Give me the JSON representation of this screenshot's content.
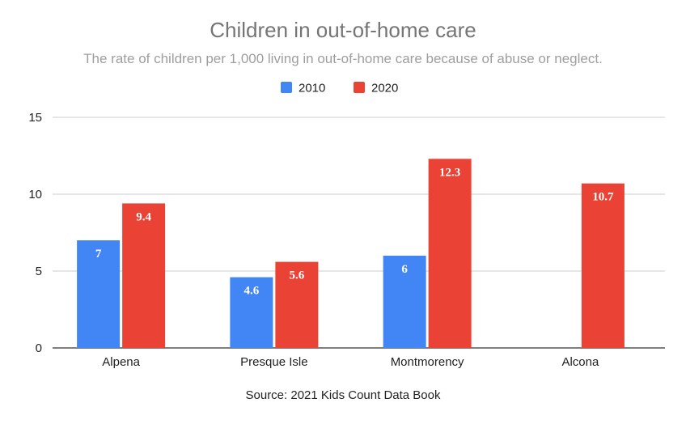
{
  "chart_data": {
    "type": "bar",
    "title": "Children in out-of-home care",
    "subtitle": "The rate of children per 1,000 living in out-of-home care because of abuse or neglect.",
    "categories": [
      "Alpena",
      "Presque Isle",
      "Montmorency",
      "Alcona"
    ],
    "series": [
      {
        "name": "2010",
        "color": "#4285f4",
        "values": [
          7,
          4.6,
          6,
          null
        ],
        "labels": [
          "7",
          "4.6",
          "6",
          null
        ]
      },
      {
        "name": "2020",
        "color": "#ea4335",
        "values": [
          9.4,
          5.6,
          12.3,
          10.7
        ],
        "labels": [
          "9.4",
          "5.6",
          "12.3",
          "10.7"
        ]
      }
    ],
    "ylim": [
      0,
      15
    ],
    "yticks": [
      0,
      5,
      10,
      15
    ],
    "ytick_labels": [
      "0",
      "5",
      "10",
      "15"
    ],
    "grid": true,
    "legend": "top-center",
    "xlabel": "",
    "ylabel": "",
    "source": "Source: 2021 Kids Count Data Book"
  }
}
